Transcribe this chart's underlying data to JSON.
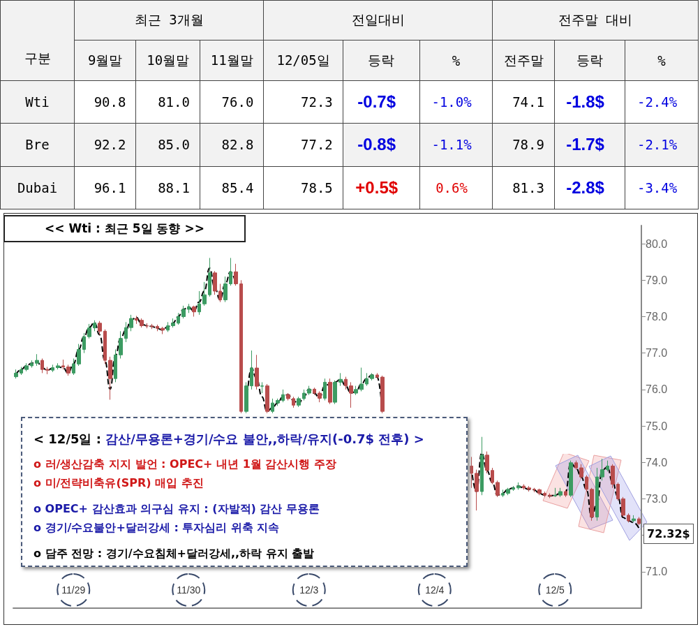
{
  "chart_data": [
    {
      "type": "other",
      "categories": [
        "9월말",
        "10월말",
        "11월말",
        "12/05일",
        "등락",
        "%",
        "전주말",
        "등락",
        "%"
      ],
      "y_categories": [
        "Wti",
        "Bre",
        "Dubai"
      ],
      "cell_labels": [
        [
          "90.8",
          "81.0",
          "76.0",
          "72.3",
          "-0.7$",
          "-1.0%",
          "74.1",
          "-1.8$",
          "-2.4%"
        ],
        [
          "92.2",
          "85.0",
          "82.8",
          "77.2",
          "-0.8$",
          "-1.1%",
          "78.9",
          "-1.7$",
          "-2.1%"
        ],
        [
          "96.1",
          "88.1",
          "85.4",
          "78.5",
          "+0.5$",
          "0.6%",
          "81.3",
          "-2.8$",
          "-3.4%"
        ]
      ],
      "annotations": [
        "구분",
        "최근 3개월",
        "전일대비",
        "전주말 대비"
      ]
    },
    {
      "type": "candlestick",
      "title": "<< Wti : 최근 5일 동향 >>",
      "categories": [
        null,
        null,
        null,
        null,
        null,
        null,
        null,
        null,
        null,
        null,
        null,
        "11/29",
        null,
        null,
        null,
        null,
        null,
        null,
        null,
        null,
        null,
        null,
        null,
        null,
        null,
        null,
        null,
        null,
        null,
        null,
        null,
        null,
        null,
        "11/30",
        null,
        null,
        null,
        null,
        null,
        null,
        null,
        null,
        null,
        null,
        null,
        null,
        null,
        null,
        null,
        null,
        null,
        null,
        null,
        null,
        null,
        null,
        "12/3",
        null,
        null,
        null,
        null,
        null,
        null,
        null,
        null,
        null,
        null,
        null,
        null,
        null,
        null,
        null,
        null,
        null,
        null,
        null,
        null,
        null,
        null,
        null,
        "12/4",
        null,
        null,
        null,
        null,
        null,
        null,
        null,
        null,
        null,
        null,
        null,
        null,
        null,
        null,
        null,
        null,
        null,
        null,
        null,
        null,
        null,
        null,
        "12/5",
        null,
        null,
        null,
        null,
        null,
        null,
        null,
        null,
        null,
        null,
        null,
        null,
        null,
        null,
        null,
        null
      ],
      "series": [
        {
          "type": "candlestick",
          "colors": [
            "#3c9b62",
            "#3c9b62",
            "#3c9b62",
            "#3c9b62",
            "#3c9b62",
            "#b84c4c",
            "#b84c4c",
            "#3c9b62",
            "#3c9b62",
            "#b84c4c",
            "#b84c4c",
            "#3c9b62",
            "#3c9b62",
            "#3c9b62",
            "#3c9b62",
            "#3c9b62",
            "#b84c4c",
            "#b84c4c",
            "#b84c4c",
            "#3c9b62",
            "#3c9b62",
            "#3c9b62",
            "#3c9b62",
            "#b84c4c",
            "#b84c4c",
            "#b84c4c",
            "#b84c4c",
            "#b84c4c",
            "#b84c4c",
            "#3c9b62",
            "#3c9b62",
            "#3c9b62",
            "#3c9b62",
            "#3c9b62",
            "#b84c4c",
            "#3c9b62",
            "#3c9b62",
            "#3c9b62",
            "#b84c4c",
            "#b84c4c",
            "#3c9b62",
            "#3c9b62",
            "#b84c4c",
            "#b84c4c",
            "#3c9b62",
            "#3c9b62",
            "#b84c4c",
            "#3c9b62",
            "#b84c4c",
            "#3c9b62",
            "#3c9b62",
            "#3c9b62",
            "#b84c4c",
            "#b84c4c",
            "#3c9b62",
            "#3c9b62",
            "#3c9b62",
            "#b84c4c",
            "#b84c4c",
            "#3c9b62",
            "#b84c4c",
            "#3c9b62",
            "#3c9b62",
            "#b84c4c",
            "#b84c4c",
            "#3c9b62",
            "#3c9b62",
            "#3c9b62",
            "#3c9b62",
            "#b84c4c",
            "#b84c4c",
            null,
            null,
            null,
            null,
            null,
            null,
            null,
            null,
            null,
            null,
            null,
            null,
            null,
            null,
            null,
            null,
            "#b84c4c",
            "#b84c4c",
            "#3c9b62",
            "#b84c4c",
            "#b84c4c",
            "#b84c4c",
            "#3c9b62",
            "#3c9b62",
            "#3c9b62",
            "#3c9b62",
            "#b84c4c",
            "#b84c4c",
            "#b84c4c",
            "#b84c4c",
            "#b84c4c",
            "#b84c4c",
            "#3c9b62",
            "#3c9b62",
            "#b84c4c",
            "#3c9b62",
            "#b84c4c",
            "#b84c4c",
            "#b84c4c",
            "#b84c4c",
            "#3c9b62",
            "#3c9b62",
            "#3c9b62",
            "#b84c4c",
            "#b84c4c",
            "#b84c4c",
            "#b84c4c",
            "#3c9b62",
            "#b84c4c"
          ],
          "ohlc": [
            [
              76.35,
              76.55,
              76.3,
              76.45
            ],
            [
              76.45,
              76.62,
              76.4,
              76.55
            ],
            [
              76.55,
              76.72,
              76.5,
              76.65
            ],
            [
              76.65,
              76.8,
              76.6,
              76.72
            ],
            [
              76.72,
              76.97,
              76.65,
              76.8
            ],
            [
              76.8,
              76.85,
              76.45,
              76.55
            ],
            [
              76.55,
              76.62,
              76.42,
              76.53
            ],
            [
              76.53,
              76.68,
              76.48,
              76.6
            ],
            [
              76.6,
              76.72,
              76.55,
              76.65
            ],
            [
              76.65,
              76.82,
              76.55,
              76.62
            ],
            [
              76.62,
              76.68,
              76.38,
              76.45
            ],
            [
              76.45,
              76.85,
              76.4,
              76.7
            ],
            [
              76.7,
              77.25,
              76.65,
              77.1
            ],
            [
              77.1,
              77.55,
              77.0,
              77.45
            ],
            [
              77.45,
              77.8,
              77.4,
              77.69
            ],
            [
              77.69,
              77.9,
              77.6,
              77.82
            ],
            [
              77.82,
              77.88,
              77.5,
              77.6
            ],
            [
              77.6,
              77.65,
              76.7,
              76.8
            ],
            [
              76.8,
              76.9,
              75.72,
              76.3
            ],
            [
              76.3,
              77.1,
              76.2,
              76.95
            ],
            [
              76.95,
              77.6,
              76.85,
              77.4
            ],
            [
              77.4,
              77.85,
              77.3,
              77.7
            ],
            [
              77.7,
              78.05,
              77.6,
              77.95
            ],
            [
              77.95,
              78.02,
              77.8,
              77.9
            ],
            [
              77.9,
              77.95,
              77.7,
              77.75
            ],
            [
              77.75,
              77.82,
              77.68,
              77.74
            ],
            [
              77.74,
              77.8,
              77.66,
              77.73
            ],
            [
              77.73,
              77.78,
              77.6,
              77.68
            ],
            [
              77.68,
              77.72,
              77.52,
              77.63
            ],
            [
              77.63,
              77.85,
              77.58,
              77.75
            ],
            [
              77.75,
              77.95,
              77.7,
              77.82
            ],
            [
              77.82,
              78.1,
              77.78,
              78.0
            ],
            [
              78.0,
              78.3,
              77.95,
              78.2
            ],
            [
              78.2,
              78.35,
              78.1,
              78.27
            ],
            [
              78.27,
              78.3,
              78.0,
              78.13
            ],
            [
              78.13,
              78.7,
              78.05,
              78.35
            ],
            [
              78.35,
              78.95,
              78.3,
              78.6
            ],
            [
              78.6,
              79.61,
              78.55,
              79.2
            ],
            [
              79.2,
              79.25,
              78.6,
              78.7
            ],
            [
              78.7,
              78.9,
              78.4,
              78.46
            ],
            [
              78.46,
              79.1,
              78.4,
              78.9
            ],
            [
              78.9,
              79.61,
              78.85,
              79.23
            ],
            [
              79.23,
              79.45,
              78.85,
              78.9
            ],
            [
              78.9,
              79.0,
              75.35,
              75.4
            ],
            [
              75.4,
              76.2,
              75.35,
              76.1
            ],
            [
              76.1,
              77.07,
              76.0,
              76.59
            ],
            [
              76.59,
              76.95,
              76.0,
              76.09
            ],
            [
              76.09,
              76.2,
              75.9,
              76.1
            ],
            [
              76.1,
              76.15,
              75.35,
              75.4
            ],
            [
              75.4,
              75.75,
              75.35,
              75.63
            ],
            [
              75.63,
              75.75,
              75.55,
              75.7
            ],
            [
              75.7,
              76.0,
              75.65,
              75.86
            ],
            [
              75.86,
              75.9,
              75.7,
              75.75
            ],
            [
              75.75,
              75.8,
              75.5,
              75.57
            ],
            [
              75.57,
              75.8,
              75.52,
              75.75
            ],
            [
              75.75,
              76.0,
              75.7,
              75.9
            ],
            [
              75.9,
              76.1,
              75.85,
              76.01
            ],
            [
              76.01,
              76.05,
              75.85,
              75.9
            ],
            [
              75.9,
              75.95,
              75.65,
              75.76
            ],
            [
              75.76,
              76.3,
              75.7,
              76.2
            ],
            [
              76.2,
              76.3,
              75.6,
              75.65
            ],
            [
              75.65,
              76.25,
              75.6,
              76.2
            ],
            [
              76.2,
              76.45,
              76.1,
              76.28
            ],
            [
              76.28,
              76.35,
              76.0,
              76.1
            ],
            [
              76.1,
              76.2,
              75.5,
              75.9
            ],
            [
              75.9,
              76.1,
              75.85,
              76.0
            ],
            [
              76.0,
              76.6,
              75.95,
              76.15
            ],
            [
              76.15,
              76.45,
              76.1,
              76.3
            ],
            [
              76.3,
              76.45,
              76.25,
              76.4
            ],
            [
              76.4,
              76.45,
              76.3,
              76.34
            ],
            [
              76.34,
              76.38,
              75.35,
              75.4
            ],
            null,
            null,
            null,
            null,
            null,
            null,
            null,
            null,
            null,
            null,
            null,
            null,
            null,
            null,
            null,
            null,
            [
              73.9,
              74.15,
              73.3,
              73.7
            ],
            [
              73.7,
              73.8,
              72.68,
              73.2
            ],
            [
              73.2,
              74.7,
              73.1,
              74.2
            ],
            [
              74.2,
              74.3,
              73.7,
              73.78
            ],
            [
              73.78,
              73.85,
              73.4,
              73.45
            ],
            [
              73.45,
              73.5,
              73.05,
              73.1
            ],
            [
              73.1,
              73.25,
              73.05,
              73.15
            ],
            [
              73.15,
              73.3,
              73.1,
              73.26
            ],
            [
              73.26,
              73.35,
              73.22,
              73.3
            ],
            [
              73.3,
              73.45,
              73.25,
              73.35
            ],
            [
              73.35,
              73.4,
              73.25,
              73.3
            ],
            [
              73.3,
              73.35,
              73.2,
              73.26
            ],
            [
              73.26,
              73.3,
              73.18,
              73.25
            ],
            [
              73.25,
              73.28,
              73.1,
              73.15
            ],
            [
              73.15,
              73.2,
              73.05,
              73.1
            ],
            [
              73.1,
              73.15,
              73.02,
              73.08
            ],
            [
              73.08,
              73.3,
              73.05,
              73.1
            ],
            [
              73.1,
              73.3,
              73.05,
              73.2
            ],
            [
              73.2,
              73.25,
              73.05,
              73.1
            ],
            [
              73.1,
              74.05,
              73.05,
              73.99
            ],
            [
              73.99,
              74.05,
              73.8,
              73.85
            ],
            [
              73.85,
              73.95,
              73.55,
              73.6
            ],
            [
              73.6,
              73.65,
              73.2,
              73.26
            ],
            [
              73.26,
              73.3,
              72.4,
              72.5
            ],
            [
              72.5,
              73.85,
              72.4,
              73.6
            ],
            [
              73.6,
              74.1,
              73.5,
              73.8
            ],
            [
              73.8,
              74.05,
              73.75,
              73.9
            ],
            [
              73.9,
              73.95,
              73.3,
              73.4
            ],
            [
              73.4,
              73.45,
              72.95,
              73.0
            ],
            [
              73.0,
              73.05,
              72.5,
              72.55
            ],
            [
              72.55,
              72.6,
              72.35,
              72.4
            ],
            [
              72.4,
              72.55,
              72.35,
              72.45
            ],
            [
              72.45,
              72.5,
              72.28,
              72.32
            ]
          ]
        },
        {
          "type": "line",
          "color": "#000000",
          "line_style": "dashed",
          "marker": "none",
          "values": [
            76.4,
            76.55,
            76.65,
            76.72,
            76.78,
            76.6,
            76.53,
            76.58,
            76.62,
            76.6,
            76.45,
            76.7,
            77.1,
            77.45,
            77.7,
            77.84,
            77.5,
            76.8,
            76.01,
            76.92,
            77.4,
            77.63,
            77.9,
            77.98,
            77.8,
            77.75,
            77.73,
            77.68,
            77.63,
            77.72,
            77.82,
            78.0,
            78.2,
            78.27,
            78.15,
            78.4,
            78.7,
            79.33,
            78.8,
            78.46,
            78.9,
            79.23,
            78.9,
            null,
            75.4,
            76.59,
            76.3,
            75.8,
            75.4,
            75.5,
            75.63,
            75.8,
            75.86,
            75.7,
            75.6,
            75.8,
            76.01,
            75.9,
            75.76,
            76.1,
            76.15,
            76.2,
            76.28,
            76.1,
            75.9,
            75.95,
            76.15,
            76.3,
            76.4,
            76.34,
            75.4,
            null,
            null,
            null,
            null,
            null,
            null,
            null,
            null,
            null,
            null,
            null,
            null,
            null,
            null,
            null,
            null,
            73.89,
            73.2,
            74.26,
            73.78,
            73.45,
            73.1,
            73.15,
            73.26,
            73.3,
            73.35,
            73.3,
            73.26,
            73.25,
            73.15,
            73.1,
            73.08,
            73.1,
            73.15,
            73.16,
            73.99,
            73.85,
            73.6,
            73.26,
            72.49,
            72.87,
            73.78,
            73.87,
            73.45,
            73.06,
            72.49,
            72.4,
            72.35,
            72.2
          ]
        }
      ],
      "ylim": [
        70.0,
        80.5
      ],
      "yticks": [
        {
          "value": 71,
          "label": "71.0"
        },
        {
          "value": 72,
          "label": null
        },
        {
          "value": 73,
          "label": "73.0"
        },
        {
          "value": 74,
          "label": "74.0"
        },
        {
          "value": 75,
          "label": "75.0"
        },
        {
          "value": 76,
          "label": "76.0"
        },
        {
          "value": 77,
          "label": "77.0"
        },
        {
          "value": 78,
          "label": "78.0"
        },
        {
          "value": 79,
          "label": "79.0"
        },
        {
          "value": 80,
          "label": "80.0"
        }
      ],
      "grid": false,
      "annotations": [
        "< 12/5일 :",
        "감산/무용론+경기/수요 불안,,하락/유지(-0.7$ 전후) >",
        "o 러/생산감축 지지 발언 : OPEC+ 내년 1월 감산시행 주장",
        "o 미/전략비축유(SPR) 매입 추진",
        "o OPEC+ 감산효과 의구심 유지 : (자발적) 감산 무용론",
        "o 경기/수요불안+달러강세 : 투자심리 위축 지속",
        "o 담주 전망 : 경기/수요침체+달러강세,,하락 유지 출발",
        "72.32$"
      ]
    }
  ]
}
